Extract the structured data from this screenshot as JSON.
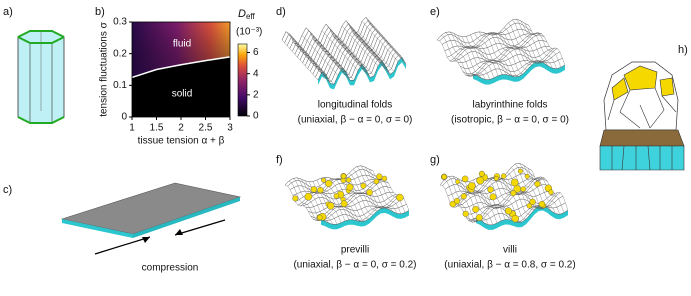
{
  "panels": {
    "a": {
      "label": "a)"
    },
    "c": {
      "label": "c)",
      "caption": "compression"
    },
    "d": {
      "label": "d)",
      "caption": "longitudinal folds",
      "params": "(uniaxial, β − α = 0, σ = 0)"
    },
    "e": {
      "label": "e)",
      "caption": "labyrinthine folds",
      "params": "(isotropic, β − α = 0, σ = 0)"
    },
    "f": {
      "label": "f)",
      "caption": "previlli",
      "params": "(uniaxial, β − α = 0, σ = 0.2)"
    },
    "g": {
      "label": "g)",
      "caption": "villi",
      "params": "(uniaxial, β − α = 0.8, σ = 0.2)"
    },
    "h": {
      "label": "h)"
    }
  },
  "chart_data": {
    "type": "heatmap",
    "panel_label": "b)",
    "x_label": "tissue tension α + β",
    "y_label": "tension fluctuations σ",
    "xlim": [
      1,
      3
    ],
    "xticks": [
      1,
      1.5,
      2,
      2.5,
      3
    ],
    "ylim": [
      0,
      0.3
    ],
    "yticks": [
      0,
      0.1,
      0.2,
      0.3
    ],
    "regions": [
      "fluid",
      "solid"
    ],
    "boundary": {
      "x": [
        1,
        1.5,
        2,
        2.5,
        3
      ],
      "y": [
        0.125,
        0.15,
        0.165,
        0.178,
        0.19
      ],
      "color": "#ffffff"
    },
    "colorbar": {
      "title": "D",
      "title_sub": "eff",
      "unit": "(10⁻³)",
      "lim": [
        0,
        6.8
      ],
      "ticks": [
        0,
        2,
        4,
        6
      ]
    }
  }
}
